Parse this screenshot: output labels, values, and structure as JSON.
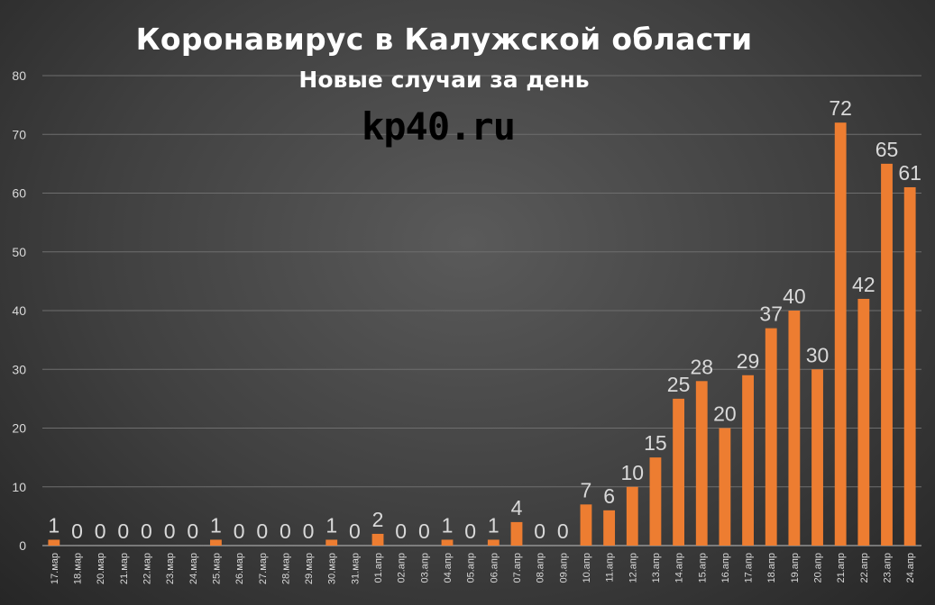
{
  "chart_data": {
    "type": "bar",
    "title": "Коронавирус в Калужской области",
    "subtitle": "Новые случаи за день",
    "watermark": "kp40.ru",
    "xlabel": "",
    "ylabel": "",
    "ylim": [
      0,
      80
    ],
    "yticks": [
      0,
      10,
      20,
      30,
      40,
      50,
      60,
      70,
      80
    ],
    "grid": true,
    "legend": "none",
    "categories": [
      "17.мар",
      "18.мар",
      "20.мар",
      "21.мар",
      "22.мар",
      "23.мар",
      "24.мар",
      "25.мар",
      "26.мар",
      "27.мар",
      "28.мар",
      "29.мар",
      "30.мар",
      "31.мар",
      "01.апр",
      "02.апр",
      "03.апр",
      "04.апр",
      "05.апр",
      "06.апр",
      "07.апр",
      "08.апр",
      "09.апр",
      "10.апр",
      "11.апр",
      "12.апр",
      "13.апр",
      "14.апр",
      "15.апр",
      "16.апр",
      "17.апр",
      "18.апр",
      "19.апр",
      "20.апр",
      "21.апр",
      "22.апр",
      "23.апр",
      "24.апр"
    ],
    "values": [
      1,
      0,
      0,
      0,
      0,
      0,
      0,
      1,
      0,
      0,
      0,
      0,
      1,
      0,
      2,
      0,
      0,
      1,
      0,
      1,
      4,
      0,
      0,
      7,
      6,
      10,
      15,
      25,
      28,
      20,
      29,
      37,
      40,
      30,
      72,
      42,
      65,
      61
    ],
    "colors": {
      "bar": "#ed7d31",
      "grid": "#6e6e6e",
      "axis": "#bfbfbf",
      "tick_label": "#d9d9d9",
      "data_label": "#d9d9d9"
    }
  }
}
